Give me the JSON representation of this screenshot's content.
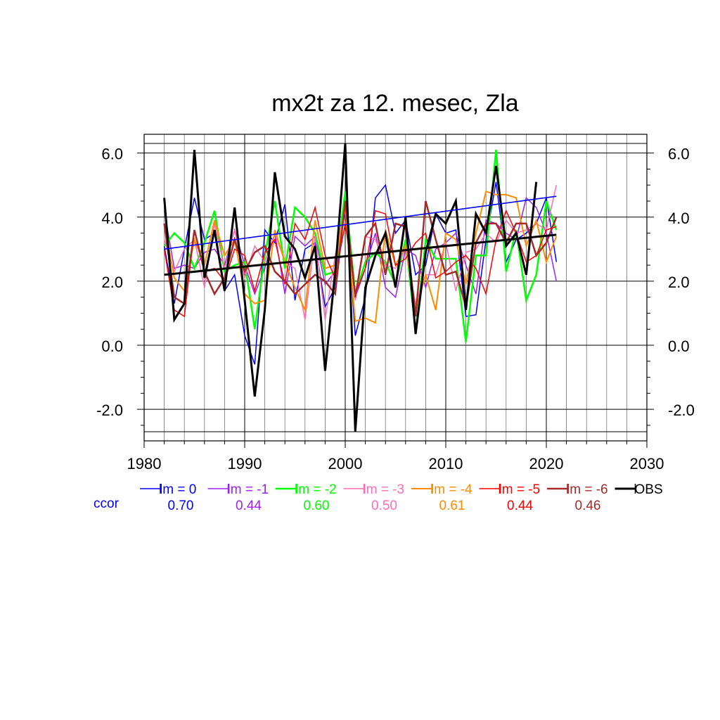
{
  "chart_data": {
    "type": "line",
    "title": "mx2t za 12. mesec, Zla",
    "xlim": [
      1980,
      2030
    ],
    "ylim": [
      -2.7,
      6.3
    ],
    "x_ticks": [
      "1980",
      "1990",
      "2000",
      "2010",
      "2020",
      "2030"
    ],
    "y_ticks": [
      "-2.0",
      "0.0",
      "2.0",
      "4.0",
      "6.0"
    ],
    "grid": true,
    "legend_position": "bottom",
    "ccor_label": "ccor",
    "x": [
      1982,
      1983,
      1984,
      1985,
      1986,
      1987,
      1988,
      1989,
      1990,
      1991,
      1992,
      1993,
      1994,
      1995,
      1996,
      1997,
      1998,
      1999,
      2000,
      2001,
      2002,
      2003,
      2004,
      2005,
      2006,
      2007,
      2008,
      2009,
      2010,
      2011,
      2012,
      2013,
      2014,
      2015,
      2016,
      2017,
      2018,
      2019,
      2020,
      2021
    ],
    "series": [
      {
        "name": "lm = 0",
        "color": "#0000ff",
        "ccor": "0.70",
        "width": 1.5,
        "values": [
          3.1,
          1.3,
          3.0,
          4.6,
          3.3,
          3.5,
          1.7,
          2.2,
          0.3,
          -0.6,
          3.6,
          3.2,
          4.4,
          1.4,
          3.0,
          3.2,
          1.2,
          1.8,
          4.8,
          0.3,
          1.5,
          4.6,
          5.0,
          3.5,
          3.9,
          2.2,
          2.5,
          4.1,
          3.5,
          3.6,
          0.9,
          0.95,
          3.3,
          5.1,
          2.6,
          3.3,
          3.5,
          3.8,
          4.6,
          2.6
        ]
      },
      {
        "name": "lm = -1",
        "color": "#a020f0",
        "ccor": "0.44",
        "width": 1.5,
        "values": [
          4.2,
          2.4,
          2.5,
          2.4,
          2.9,
          3.0,
          2.5,
          3.6,
          2.5,
          1.6,
          2.4,
          3.5,
          1.6,
          3.4,
          3.1,
          3.4,
          1.9,
          2.3,
          4.2,
          1.5,
          2.4,
          3.5,
          1.8,
          1.5,
          3.0,
          2.8,
          1.8,
          3.0,
          3.2,
          3.5,
          2.5,
          1.6,
          3.9,
          3.8,
          3.5,
          3.3,
          4.6,
          4.3,
          3.5,
          2.0
        ]
      },
      {
        "name": "lm = -2",
        "color": "#00ff00",
        "ccor": "0.60",
        "width": 2.5,
        "values": [
          3.1,
          3.5,
          3.2,
          2.4,
          3.2,
          4.2,
          2.3,
          2.5,
          2.6,
          0.5,
          2.8,
          4.5,
          2.4,
          4.3,
          4.0,
          3.5,
          2.2,
          2.3,
          4.8,
          1.6,
          2.6,
          2.9,
          2.6,
          1.9,
          3.3,
          0.4,
          3.3,
          2.7,
          2.7,
          2.7,
          0.1,
          2.8,
          2.8,
          6.1,
          2.3,
          3.6,
          1.4,
          2.2,
          4.5,
          3.6
        ]
      },
      {
        "name": "lm = -3",
        "color": "#ff6eb4",
        "ccor": "0.50",
        "width": 1.5,
        "values": [
          3.3,
          2.3,
          3.0,
          3.3,
          1.8,
          3.8,
          2.4,
          3.6,
          2.1,
          3.1,
          2.6,
          3.5,
          2.6,
          2.4,
          0.8,
          3.4,
          0.8,
          2.8,
          4.3,
          1.4,
          3.4,
          3.3,
          2.5,
          2.4,
          3.0,
          1.3,
          2.2,
          2.2,
          3.2,
          1.7,
          2.9,
          3.0,
          3.5,
          3.2,
          3.9,
          3.5,
          3.6,
          3.8,
          3.6,
          5.0
        ]
      },
      {
        "name": "lm = -4",
        "color": "#ff8c00",
        "ccor": "0.61",
        "width": 2.0,
        "values": [
          3.8,
          2.1,
          1.7,
          3.3,
          2.5,
          3.9,
          2.8,
          3.3,
          1.6,
          1.3,
          1.4,
          3.6,
          2.6,
          1.8,
          1.1,
          3.9,
          2.4,
          2.5,
          4.3,
          0.75,
          0.85,
          0.7,
          3.6,
          2.5,
          3.1,
          1.1,
          2.2,
          1.1,
          3.5,
          3.3,
          1.9,
          3.5,
          4.8,
          4.7,
          4.7,
          4.6,
          3.1,
          3.9,
          2.6,
          3.4
        ]
      },
      {
        "name": "lm = -5",
        "color": "#ff0000",
        "ccor": "0.44",
        "width": 1.5,
        "values": [
          3.0,
          1.1,
          0.9,
          3.6,
          2.3,
          2.4,
          2.0,
          3.0,
          2.8,
          1.7,
          2.9,
          3.3,
          1.9,
          3.8,
          3.3,
          4.3,
          2.8,
          2.1,
          3.8,
          1.6,
          2.4,
          4.2,
          4.1,
          2.5,
          2.7,
          3.2,
          3.5,
          2.1,
          2.3,
          2.6,
          2.8,
          2.4,
          1.6,
          3.3,
          4.2,
          3.5,
          2.6,
          2.8,
          3.6,
          3.7
        ]
      },
      {
        "name": "lm = -6",
        "color": "#a52a2a",
        "ccor": "0.46",
        "width": 2.5,
        "values": [
          3.8,
          1.5,
          1.3,
          3.6,
          2.3,
          1.6,
          2.1,
          3.3,
          2.3,
          2.9,
          3.1,
          2.3,
          2.0,
          1.6,
          1.9,
          2.2,
          2.0,
          1.6,
          4.5,
          1.5,
          3.4,
          3.8,
          2.2,
          3.8,
          3.7,
          0.9,
          4.5,
          3.3,
          2.2,
          2.3,
          1.2,
          3.2,
          3.8,
          3.8,
          3.2,
          3.8,
          3.8,
          2.8,
          3.2,
          4.0
        ]
      },
      {
        "name": "OBS",
        "color": "#000000",
        "ccor": "",
        "width": 3.0,
        "values": [
          4.6,
          0.8,
          1.3,
          6.1,
          2.1,
          3.6,
          1.7,
          4.3,
          1.4,
          -1.6,
          1.1,
          5.4,
          3.4,
          3.0,
          2.1,
          3.1,
          -0.8,
          2.3,
          6.3,
          -2.7,
          1.8,
          2.8,
          3.5,
          1.8,
          4.0,
          0.35,
          2.9,
          4.1,
          3.8,
          4.5,
          1.1,
          4.1,
          3.5,
          5.6,
          3.1,
          3.5,
          2.2,
          5.1,
          null,
          null
        ]
      }
    ],
    "trend_lines": [
      {
        "series": "lm = 0",
        "color": "#0000ff",
        "width": 1.6,
        "x": [
          1982,
          2021
        ],
        "y": [
          3.0,
          4.65
        ]
      },
      {
        "series": "OBS",
        "color": "#000000",
        "width": 3.0,
        "x": [
          1982,
          2021
        ],
        "y": [
          2.2,
          3.45
        ]
      }
    ]
  }
}
